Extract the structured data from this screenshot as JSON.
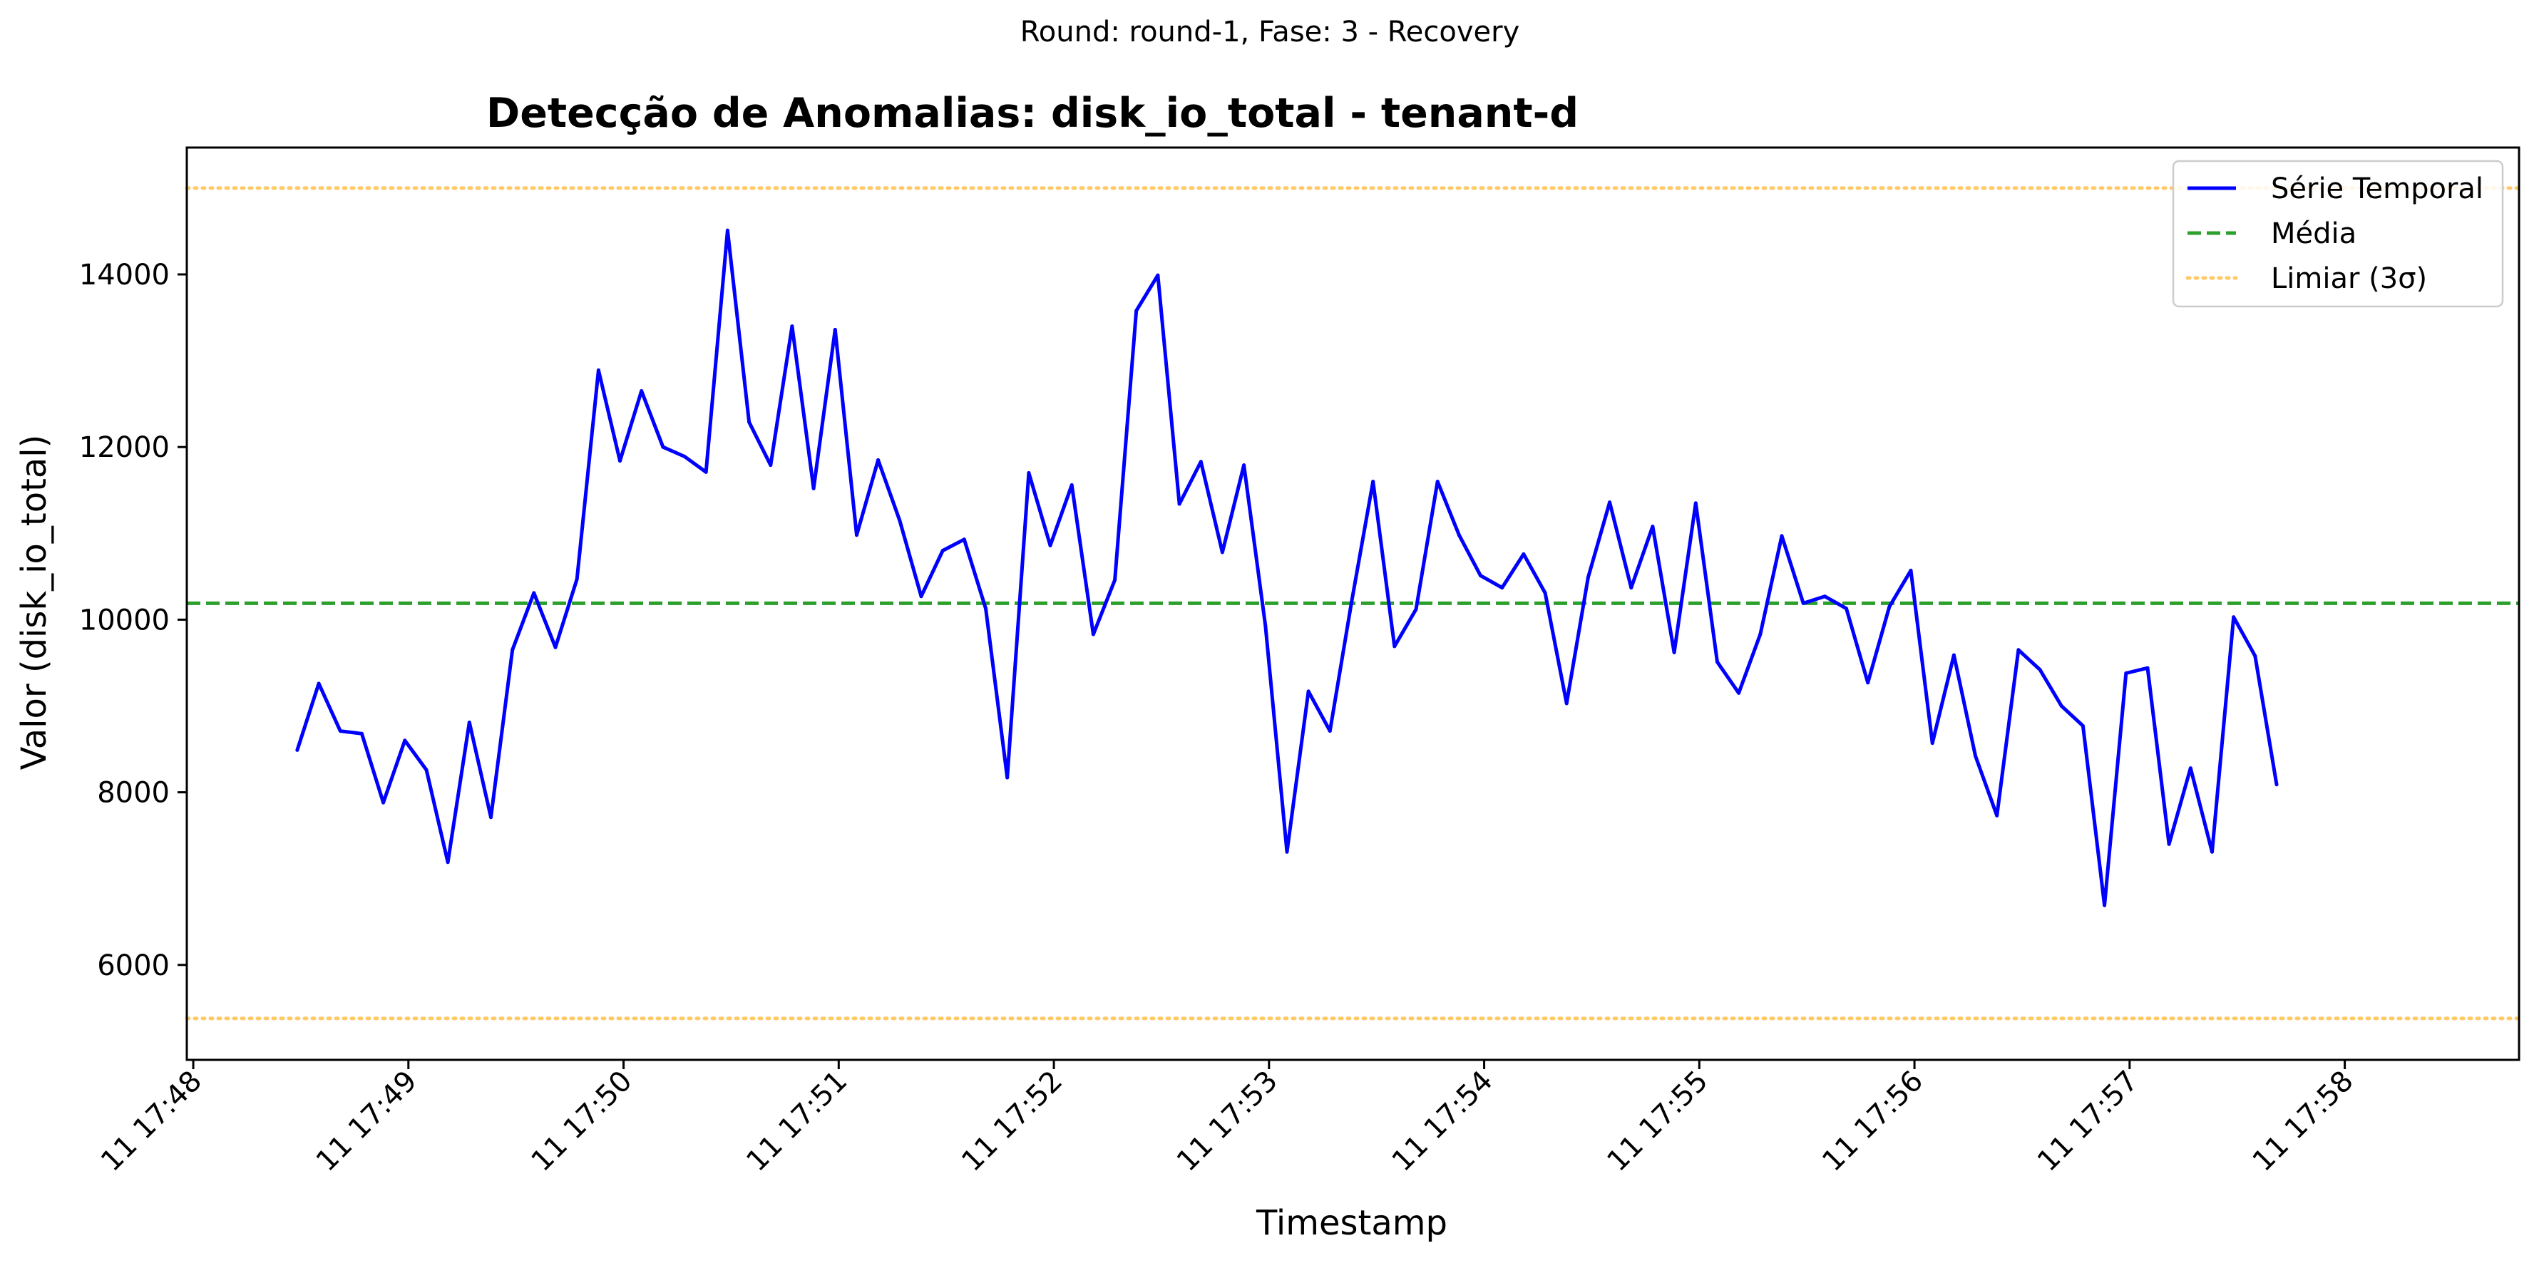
{
  "figure": {
    "suptitle": "Round: round-1, Fase: 3 - Recovery"
  },
  "chart_data": {
    "type": "line",
    "title": "Detecção de Anomalias: disk_io_total - tenant-d",
    "xlabel": "Timestamp",
    "ylabel": "Valor (disk_io_total)",
    "x_ticks": [
      "11 17:48",
      "11 17:49",
      "11 17:50",
      "11 17:51",
      "11 17:52",
      "11 17:53",
      "11 17:54",
      "11 17:55",
      "11 17:56",
      "11 17:57",
      "11 17:58"
    ],
    "x_range_minutes": [
      -0.03,
      10.81
    ],
    "x_start_time": "11 17:48",
    "x_step_seconds": 6,
    "y_ticks": [
      6000,
      8000,
      10000,
      12000,
      14000
    ],
    "ylim": [
      4900,
      15470
    ],
    "grid": false,
    "legend_position": "top-right",
    "series": [
      {
        "name": "Série Temporal",
        "style": "solid",
        "color": "#0000ff",
        "first_point_time": "11 17:48:29",
        "interval_seconds": 6,
        "values": [
          8490,
          9260,
          8710,
          8680,
          7880,
          8600,
          8260,
          7190,
          8810,
          7710,
          9650,
          10310,
          9680,
          10470,
          12890,
          11840,
          12650,
          12000,
          11890,
          11710,
          14510,
          12290,
          11790,
          13400,
          11520,
          13360,
          10980,
          11850,
          11150,
          10270,
          10800,
          10930,
          10130,
          8170,
          11700,
          10860,
          11560,
          9830,
          10460,
          13580,
          13990,
          11340,
          11830,
          10780,
          11790,
          9930,
          7310,
          9170,
          8710,
          10200,
          11600,
          9690,
          10120,
          11600,
          10980,
          10510,
          10370,
          10760,
          10310,
          9030,
          10490,
          11360,
          10370,
          11080,
          9620,
          11350,
          9510,
          9150,
          9830,
          10970,
          10190,
          10270,
          10130,
          9270,
          10150,
          10570,
          8570,
          9590,
          8420,
          7730,
          9650,
          9420,
          9000,
          8770,
          6690,
          9380,
          9440,
          7400,
          8280,
          7310,
          10030,
          9580,
          8090
        ]
      },
      {
        "name": "Média",
        "style": "dashed",
        "color": "#2ca02c",
        "value": 10190
      },
      {
        "name": "Limiar (3σ)",
        "style": "dotted",
        "color": "#ffa500",
        "values": [
          15000,
          5380
        ]
      }
    ]
  }
}
